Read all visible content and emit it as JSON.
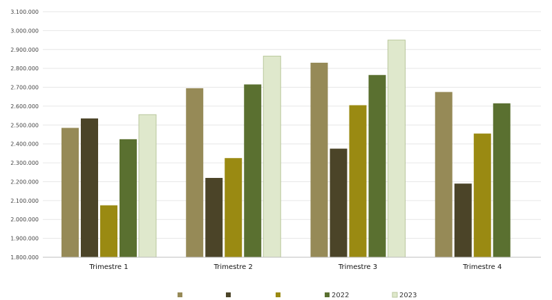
{
  "chart_data": {
    "type": "bar",
    "categories": [
      "Trimestre 1",
      "Trimestre 2",
      "Trimestre 3",
      "Trimestre 4"
    ],
    "ylim": [
      1800000,
      3100000
    ],
    "ytick_step": 100000,
    "ytick_labels": [
      "1.800.000",
      "1.900.000",
      "2.000.000",
      "2.100.000",
      "2.200.000",
      "2.300.000",
      "2.400.000",
      "2.500.000",
      "2.600.000",
      "2.700.000",
      "2.800.000",
      "2.900.000",
      "3.000.000",
      "3.100.000"
    ],
    "grid": true,
    "legend_placement": "bottom",
    "series": [
      {
        "name": "",
        "color": "#968a57",
        "values": [
          2485000,
          2695000,
          2830000,
          2675000
        ]
      },
      {
        "name": "",
        "color": "#4b4428",
        "values": [
          2535000,
          2220000,
          2375000,
          2190000
        ]
      },
      {
        "name": "",
        "color": "#9a8a12",
        "values": [
          2075000,
          2325000,
          2605000,
          2455000
        ]
      },
      {
        "name": "2022",
        "color": "#5a7030",
        "values": [
          2425000,
          2715000,
          2765000,
          2615000
        ]
      },
      {
        "name": "2023",
        "color": "#dfe8cc",
        "values": [
          2555000,
          2865000,
          2950000,
          null
        ]
      }
    ]
  }
}
